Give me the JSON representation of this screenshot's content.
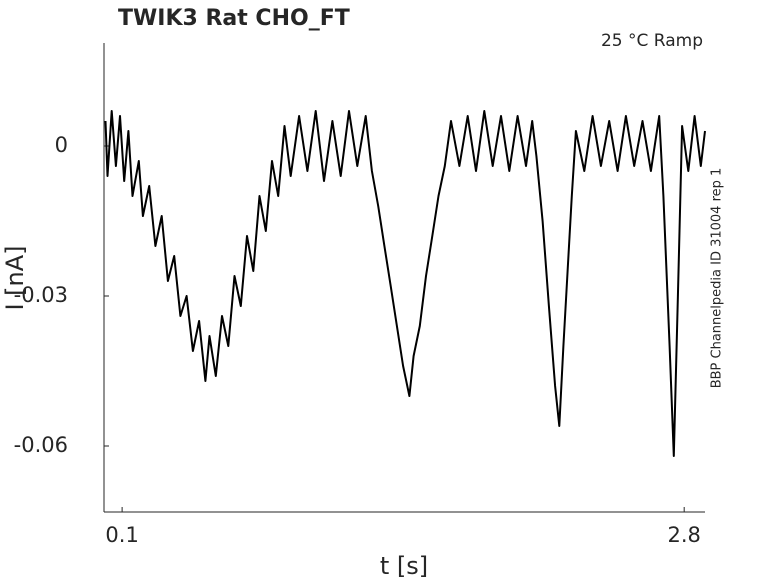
{
  "chart_data": {
    "type": "line",
    "title": "TWIK3  Rat  CHO_FT",
    "subtitle": "25 °C  Ramp",
    "side_note": "BBP Channelpedia ID 31004 rep 1",
    "x_label": "t [s]",
    "y_label": "I [nA]",
    "xlim": [
      0.013,
      2.9
    ],
    "ylim": [
      -0.0732,
      0.0206
    ],
    "xticks": [
      0.1,
      2.8
    ],
    "yticks": [
      0,
      -0.03,
      -0.06
    ],
    "x": [
      0.02,
      0.03,
      0.05,
      0.07,
      0.09,
      0.11,
      0.13,
      0.15,
      0.18,
      0.2,
      0.23,
      0.26,
      0.29,
      0.32,
      0.35,
      0.38,
      0.41,
      0.44,
      0.47,
      0.5,
      0.52,
      0.55,
      0.58,
      0.61,
      0.64,
      0.67,
      0.7,
      0.73,
      0.76,
      0.79,
      0.82,
      0.85,
      0.88,
      0.91,
      0.95,
      0.99,
      1.03,
      1.07,
      1.11,
      1.15,
      1.19,
      1.23,
      1.27,
      1.3,
      1.33,
      1.36,
      1.39,
      1.42,
      1.45,
      1.48,
      1.5,
      1.53,
      1.56,
      1.59,
      1.62,
      1.65,
      1.68,
      1.72,
      1.76,
      1.8,
      1.84,
      1.88,
      1.92,
      1.96,
      2.0,
      2.04,
      2.07,
      2.09,
      2.12,
      2.15,
      2.18,
      2.2,
      2.22,
      2.24,
      2.26,
      2.28,
      2.32,
      2.36,
      2.4,
      2.44,
      2.48,
      2.52,
      2.56,
      2.6,
      2.64,
      2.68,
      2.7,
      2.73,
      2.75,
      2.77,
      2.79,
      2.82,
      2.85,
      2.88,
      2.9
    ],
    "series": [
      {
        "color": "#000000",
        "values": [
          0.005,
          -0.006,
          0.007,
          -0.004,
          0.006,
          -0.007,
          0.003,
          -0.01,
          -0.003,
          -0.014,
          -0.008,
          -0.02,
          -0.014,
          -0.027,
          -0.022,
          -0.034,
          -0.03,
          -0.041,
          -0.035,
          -0.047,
          -0.038,
          -0.046,
          -0.034,
          -0.04,
          -0.026,
          -0.032,
          -0.018,
          -0.025,
          -0.01,
          -0.017,
          -0.003,
          -0.01,
          0.004,
          -0.006,
          0.006,
          -0.005,
          0.007,
          -0.007,
          0.005,
          -0.006,
          0.007,
          -0.004,
          0.006,
          -0.005,
          -0.012,
          -0.02,
          -0.028,
          -0.036,
          -0.044,
          -0.05,
          -0.042,
          -0.036,
          -0.026,
          -0.018,
          -0.01,
          -0.004,
          0.005,
          -0.004,
          0.006,
          -0.005,
          0.007,
          -0.004,
          0.006,
          -0.005,
          0.006,
          -0.004,
          0.005,
          -0.002,
          -0.015,
          -0.032,
          -0.048,
          -0.056,
          -0.04,
          -0.025,
          -0.01,
          0.003,
          -0.005,
          0.006,
          -0.004,
          0.005,
          -0.005,
          0.006,
          -0.004,
          0.005,
          -0.005,
          0.006,
          -0.01,
          -0.04,
          -0.062,
          -0.03,
          0.004,
          -0.005,
          0.006,
          -0.004,
          0.003
        ]
      }
    ]
  }
}
